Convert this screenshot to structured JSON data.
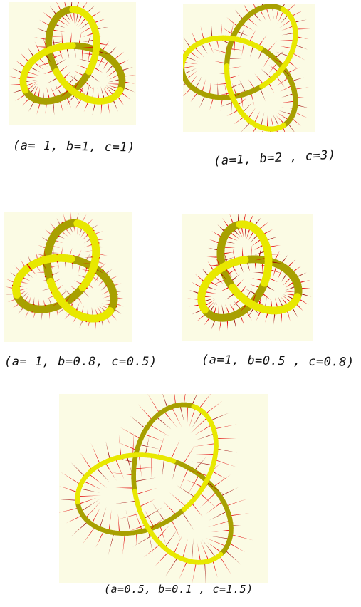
{
  "figure": {
    "panels": [
      {
        "caption": "(a= 1, b=1, c=1)"
      },
      {
        "caption": "(a=1, b=2 , c=3)"
      },
      {
        "caption": "(a= 1, b=0.8, c=0.5)"
      },
      {
        "caption": "(a=1, b=0.5 , c=0.8)"
      },
      {
        "caption": "(a=0.5, b=0.1 , c=1.5)"
      }
    ]
  },
  "colors": {
    "background": "#fbfbe4",
    "tube_yellow": "#e8e800",
    "tube_yellow_shade": "#a8a000",
    "fin_red": "#e00000",
    "fin_red_dark": "#9a0000"
  }
}
